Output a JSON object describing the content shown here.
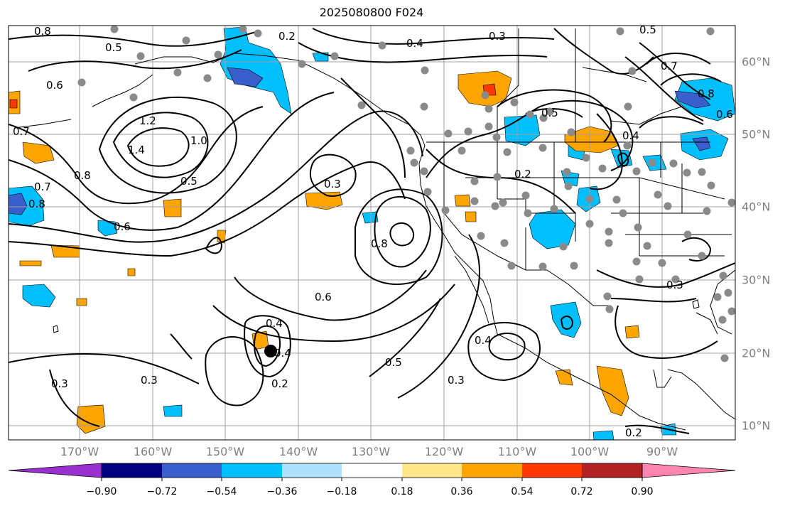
{
  "title": "2025080800 F024",
  "map": {
    "longitude_labels": [
      "170°W",
      "160°W",
      "150°W",
      "140°W",
      "130°W",
      "120°W",
      "110°W",
      "100°W",
      "90°W"
    ],
    "latitude_labels": [
      "60°N",
      "50°N",
      "40°N",
      "30°N",
      "20°N",
      "10°N"
    ],
    "contour_labels": [
      "0.8",
      "0.5",
      "0.6",
      "0.2",
      "0.4",
      "0.3",
      "0.7",
      "1.2",
      "1.4",
      "1.0",
      "0.5",
      "0.8",
      "0.7",
      "0.8",
      "0.6",
      "0.3",
      "0.8",
      "0.2",
      "0.5",
      "0.4",
      "0.6",
      "0.4",
      "0.4",
      "0.5",
      "0.3",
      "0.4",
      "0.2",
      "0.3",
      "0.3",
      "0.2",
      "0.3",
      "0.8",
      "0.6",
      "0.7",
      "0.5"
    ],
    "marker": "black-dot",
    "station_marker": "gray-dot"
  },
  "colorbar": {
    "ticks": [
      "−0.90",
      "−0.72",
      "−0.54",
      "−0.36",
      "−0.18",
      "0.18",
      "0.36",
      "0.54",
      "0.72",
      "0.90"
    ],
    "colors": [
      "#9b30d0",
      "#000080",
      "#3a5fcd",
      "#00bfff",
      "#b0e0ff",
      "#ffffff",
      "#ffe88a",
      "#ffa500",
      "#ff3a00",
      "#b22222",
      "#ff85b0"
    ]
  }
}
